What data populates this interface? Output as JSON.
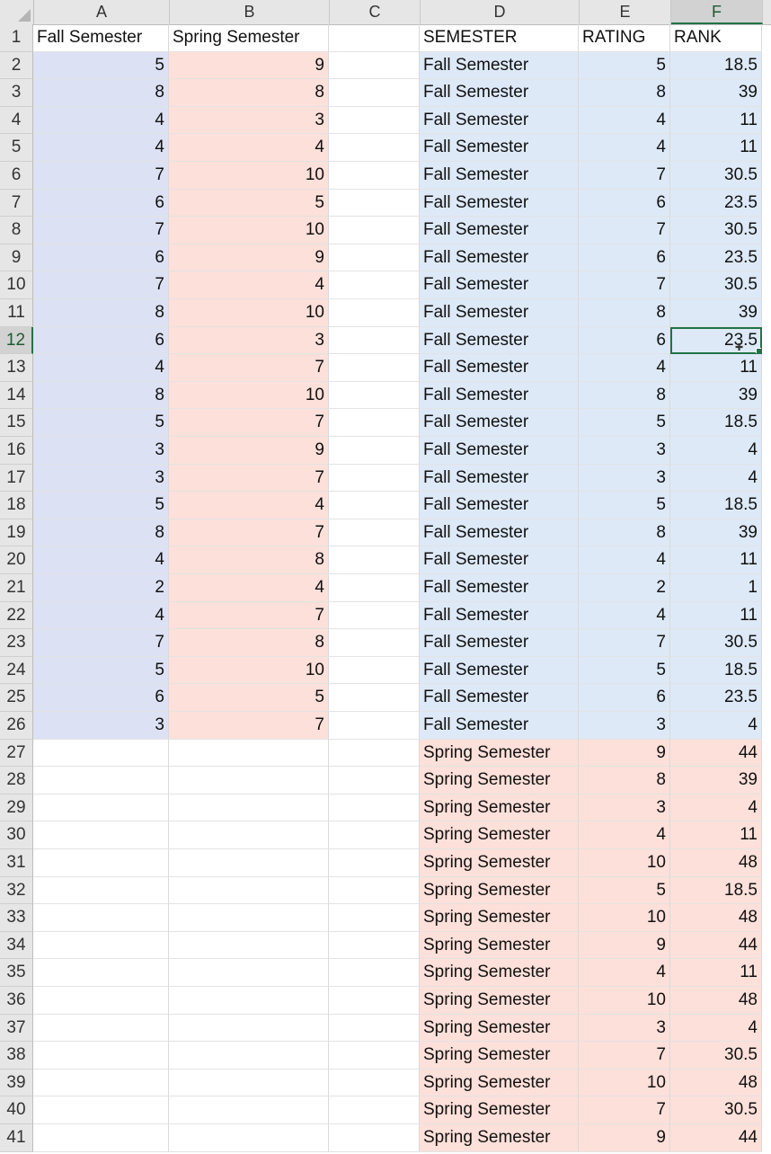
{
  "columns": [
    "A",
    "B",
    "C",
    "D",
    "E",
    "F"
  ],
  "selected_column": "F",
  "selected_row": 12,
  "rows": [
    {
      "n": "1",
      "A": "Fall Semester",
      "B": "Spring Semester",
      "C": "",
      "D": "SEMESTER",
      "E": "RATING",
      "F": "RANK"
    },
    {
      "n": "2",
      "A": "5",
      "B": "9",
      "C": "",
      "D": "Fall Semester",
      "E": "5",
      "F": "18.5"
    },
    {
      "n": "3",
      "A": "8",
      "B": "8",
      "C": "",
      "D": "Fall Semester",
      "E": "8",
      "F": "39"
    },
    {
      "n": "4",
      "A": "4",
      "B": "3",
      "C": "",
      "D": "Fall Semester",
      "E": "4",
      "F": "11"
    },
    {
      "n": "5",
      "A": "4",
      "B": "4",
      "C": "",
      "D": "Fall Semester",
      "E": "4",
      "F": "11"
    },
    {
      "n": "6",
      "A": "7",
      "B": "10",
      "C": "",
      "D": "Fall Semester",
      "E": "7",
      "F": "30.5"
    },
    {
      "n": "7",
      "A": "6",
      "B": "5",
      "C": "",
      "D": "Fall Semester",
      "E": "6",
      "F": "23.5"
    },
    {
      "n": "8",
      "A": "7",
      "B": "10",
      "C": "",
      "D": "Fall Semester",
      "E": "7",
      "F": "30.5"
    },
    {
      "n": "9",
      "A": "6",
      "B": "9",
      "C": "",
      "D": "Fall Semester",
      "E": "6",
      "F": "23.5"
    },
    {
      "n": "10",
      "A": "7",
      "B": "4",
      "C": "",
      "D": "Fall Semester",
      "E": "7",
      "F": "30.5"
    },
    {
      "n": "11",
      "A": "8",
      "B": "10",
      "C": "",
      "D": "Fall Semester",
      "E": "8",
      "F": "39"
    },
    {
      "n": "12",
      "A": "6",
      "B": "3",
      "C": "",
      "D": "Fall Semester",
      "E": "6",
      "F": "23.5"
    },
    {
      "n": "13",
      "A": "4",
      "B": "7",
      "C": "",
      "D": "Fall Semester",
      "E": "4",
      "F": "11"
    },
    {
      "n": "14",
      "A": "8",
      "B": "10",
      "C": "",
      "D": "Fall Semester",
      "E": "8",
      "F": "39"
    },
    {
      "n": "15",
      "A": "5",
      "B": "7",
      "C": "",
      "D": "Fall Semester",
      "E": "5",
      "F": "18.5"
    },
    {
      "n": "16",
      "A": "3",
      "B": "9",
      "C": "",
      "D": "Fall Semester",
      "E": "3",
      "F": "4"
    },
    {
      "n": "17",
      "A": "3",
      "B": "7",
      "C": "",
      "D": "Fall Semester",
      "E": "3",
      "F": "4"
    },
    {
      "n": "18",
      "A": "5",
      "B": "4",
      "C": "",
      "D": "Fall Semester",
      "E": "5",
      "F": "18.5"
    },
    {
      "n": "19",
      "A": "8",
      "B": "7",
      "C": "",
      "D": "Fall Semester",
      "E": "8",
      "F": "39"
    },
    {
      "n": "20",
      "A": "4",
      "B": "8",
      "C": "",
      "D": "Fall Semester",
      "E": "4",
      "F": "11"
    },
    {
      "n": "21",
      "A": "2",
      "B": "4",
      "C": "",
      "D": "Fall Semester",
      "E": "2",
      "F": "1"
    },
    {
      "n": "22",
      "A": "4",
      "B": "7",
      "C": "",
      "D": "Fall Semester",
      "E": "4",
      "F": "11"
    },
    {
      "n": "23",
      "A": "7",
      "B": "8",
      "C": "",
      "D": "Fall Semester",
      "E": "7",
      "F": "30.5"
    },
    {
      "n": "24",
      "A": "5",
      "B": "10",
      "C": "",
      "D": "Fall Semester",
      "E": "5",
      "F": "18.5"
    },
    {
      "n": "25",
      "A": "6",
      "B": "5",
      "C": "",
      "D": "Fall Semester",
      "E": "6",
      "F": "23.5"
    },
    {
      "n": "26",
      "A": "3",
      "B": "7",
      "C": "",
      "D": "Fall Semester",
      "E": "3",
      "F": "4"
    },
    {
      "n": "27",
      "A": "",
      "B": "",
      "C": "",
      "D": "Spring Semester",
      "E": "9",
      "F": "44"
    },
    {
      "n": "28",
      "A": "",
      "B": "",
      "C": "",
      "D": "Spring Semester",
      "E": "8",
      "F": "39"
    },
    {
      "n": "29",
      "A": "",
      "B": "",
      "C": "",
      "D": "Spring Semester",
      "E": "3",
      "F": "4"
    },
    {
      "n": "30",
      "A": "",
      "B": "",
      "C": "",
      "D": "Spring Semester",
      "E": "4",
      "F": "11"
    },
    {
      "n": "31",
      "A": "",
      "B": "",
      "C": "",
      "D": "Spring Semester",
      "E": "10",
      "F": "48"
    },
    {
      "n": "32",
      "A": "",
      "B": "",
      "C": "",
      "D": "Spring Semester",
      "E": "5",
      "F": "18.5"
    },
    {
      "n": "33",
      "A": "",
      "B": "",
      "C": "",
      "D": "Spring Semester",
      "E": "10",
      "F": "48"
    },
    {
      "n": "34",
      "A": "",
      "B": "",
      "C": "",
      "D": "Spring Semester",
      "E": "9",
      "F": "44"
    },
    {
      "n": "35",
      "A": "",
      "B": "",
      "C": "",
      "D": "Spring Semester",
      "E": "4",
      "F": "11"
    },
    {
      "n": "36",
      "A": "",
      "B": "",
      "C": "",
      "D": "Spring Semester",
      "E": "10",
      "F": "48"
    },
    {
      "n": "37",
      "A": "",
      "B": "",
      "C": "",
      "D": "Spring Semester",
      "E": "3",
      "F": "4"
    },
    {
      "n": "38",
      "A": "",
      "B": "",
      "C": "",
      "D": "Spring Semester",
      "E": "7",
      "F": "30.5"
    },
    {
      "n": "39",
      "A": "",
      "B": "",
      "C": "",
      "D": "Spring Semester",
      "E": "10",
      "F": "48"
    },
    {
      "n": "40",
      "A": "",
      "B": "",
      "C": "",
      "D": "Spring Semester",
      "E": "7",
      "F": "30.5"
    },
    {
      "n": "41",
      "A": "",
      "B": "",
      "C": "",
      "D": "Spring Semester",
      "E": "9",
      "F": "44"
    }
  ],
  "colors": {
    "fall_ab": "#dde1f4",
    "spring_ab": "#fde0d9",
    "fall_def": "#dde9f7",
    "spring_def": "#fde0d9",
    "selection": "#217346"
  },
  "icons": {
    "cursor": "plus-cursor-icon",
    "corner": "select-all-triangle-icon"
  }
}
